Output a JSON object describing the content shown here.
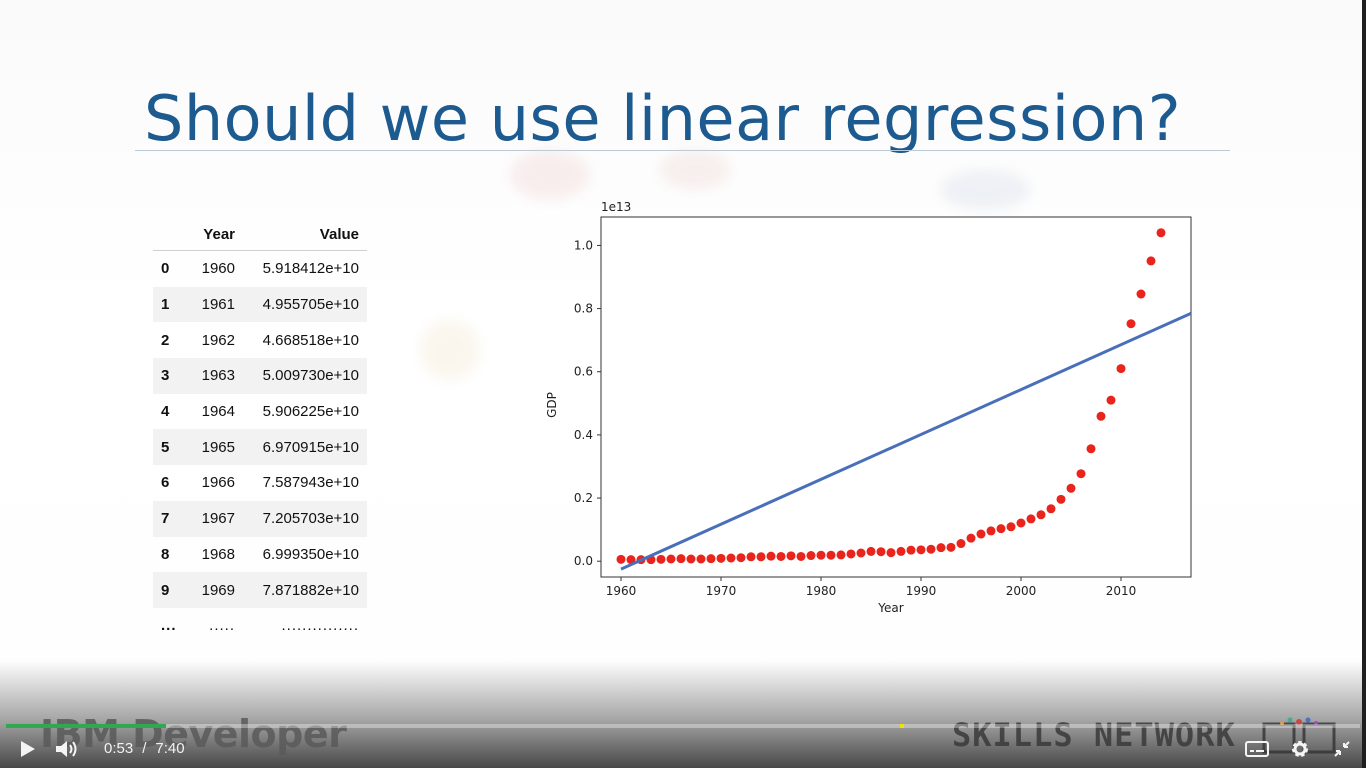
{
  "slide": {
    "title": "Should we use linear regression?"
  },
  "table": {
    "headers": [
      "",
      "Year",
      "Value"
    ],
    "rows": [
      [
        "0",
        "1960",
        "5.918412e+10"
      ],
      [
        "1",
        "1961",
        "4.955705e+10"
      ],
      [
        "2",
        "1962",
        "4.668518e+10"
      ],
      [
        "3",
        "1963",
        "5.009730e+10"
      ],
      [
        "4",
        "1964",
        "5.906225e+10"
      ],
      [
        "5",
        "1965",
        "6.970915e+10"
      ],
      [
        "6",
        "1966",
        "7.587943e+10"
      ],
      [
        "7",
        "1967",
        "7.205703e+10"
      ],
      [
        "8",
        "1968",
        "6.999350e+10"
      ],
      [
        "9",
        "1969",
        "7.871882e+10"
      ]
    ],
    "ellipsis": [
      "...",
      ".....",
      "..............."
    ]
  },
  "chart_data": {
    "type": "scatter",
    "scale_label": "1e13",
    "xlabel": "Year",
    "ylabel": "GDP",
    "xlim": [
      1958,
      2017
    ],
    "ylim": [
      -0.05,
      1.09
    ],
    "x_ticks": [
      1960,
      1970,
      1980,
      1990,
      2000,
      2010
    ],
    "y_ticks": [
      0.0,
      0.2,
      0.4,
      0.6,
      0.8,
      1.0
    ],
    "y_tick_labels": [
      "0.0",
      "0.2",
      "0.4",
      "0.6",
      "0.8",
      "1.0"
    ],
    "grid": false,
    "point_color": "#e8241c",
    "line_color": "#4a6fba",
    "series": [
      {
        "type": "scatter",
        "x": [
          1960,
          1961,
          1962,
          1963,
          1964,
          1965,
          1966,
          1967,
          1968,
          1969,
          1970,
          1971,
          1972,
          1973,
          1974,
          1975,
          1976,
          1977,
          1978,
          1979,
          1980,
          1981,
          1982,
          1983,
          1984,
          1985,
          1986,
          1987,
          1988,
          1989,
          1990,
          1991,
          1992,
          1993,
          1994,
          1995,
          1996,
          1997,
          1998,
          1999,
          2000,
          2001,
          2002,
          2003,
          2004,
          2005,
          2006,
          2007,
          2008,
          2009,
          2010,
          2011,
          2012,
          2013,
          2014
        ],
        "y": [
          0.006,
          0.005,
          0.005,
          0.005,
          0.006,
          0.007,
          0.008,
          0.007,
          0.007,
          0.008,
          0.009,
          0.01,
          0.011,
          0.014,
          0.014,
          0.016,
          0.015,
          0.017,
          0.015,
          0.018,
          0.019,
          0.019,
          0.02,
          0.023,
          0.026,
          0.031,
          0.03,
          0.027,
          0.031,
          0.035,
          0.036,
          0.038,
          0.043,
          0.044,
          0.056,
          0.073,
          0.086,
          0.096,
          0.103,
          0.109,
          0.121,
          0.134,
          0.147,
          0.166,
          0.196,
          0.231,
          0.277,
          0.356,
          0.459,
          0.51,
          0.61,
          0.752,
          0.846,
          0.951,
          1.04
        ]
      },
      {
        "type": "line",
        "x": [
          1960,
          2017
        ],
        "y": [
          -0.025,
          0.785
        ]
      }
    ]
  },
  "player": {
    "current_time": "0:53",
    "separator": "/",
    "duration": "7:40",
    "progress_fraction": 0.118,
    "marker_fraction": 0.66,
    "logo_left": "IBM Developer",
    "logo_right": "SKILLS NETWORK",
    "icons": {
      "play": "play-icon",
      "volume": "volume-icon",
      "captions": "captions-icon",
      "settings": "gear-icon",
      "exit_fullscreen": "exit-fullscreen-icon"
    }
  }
}
